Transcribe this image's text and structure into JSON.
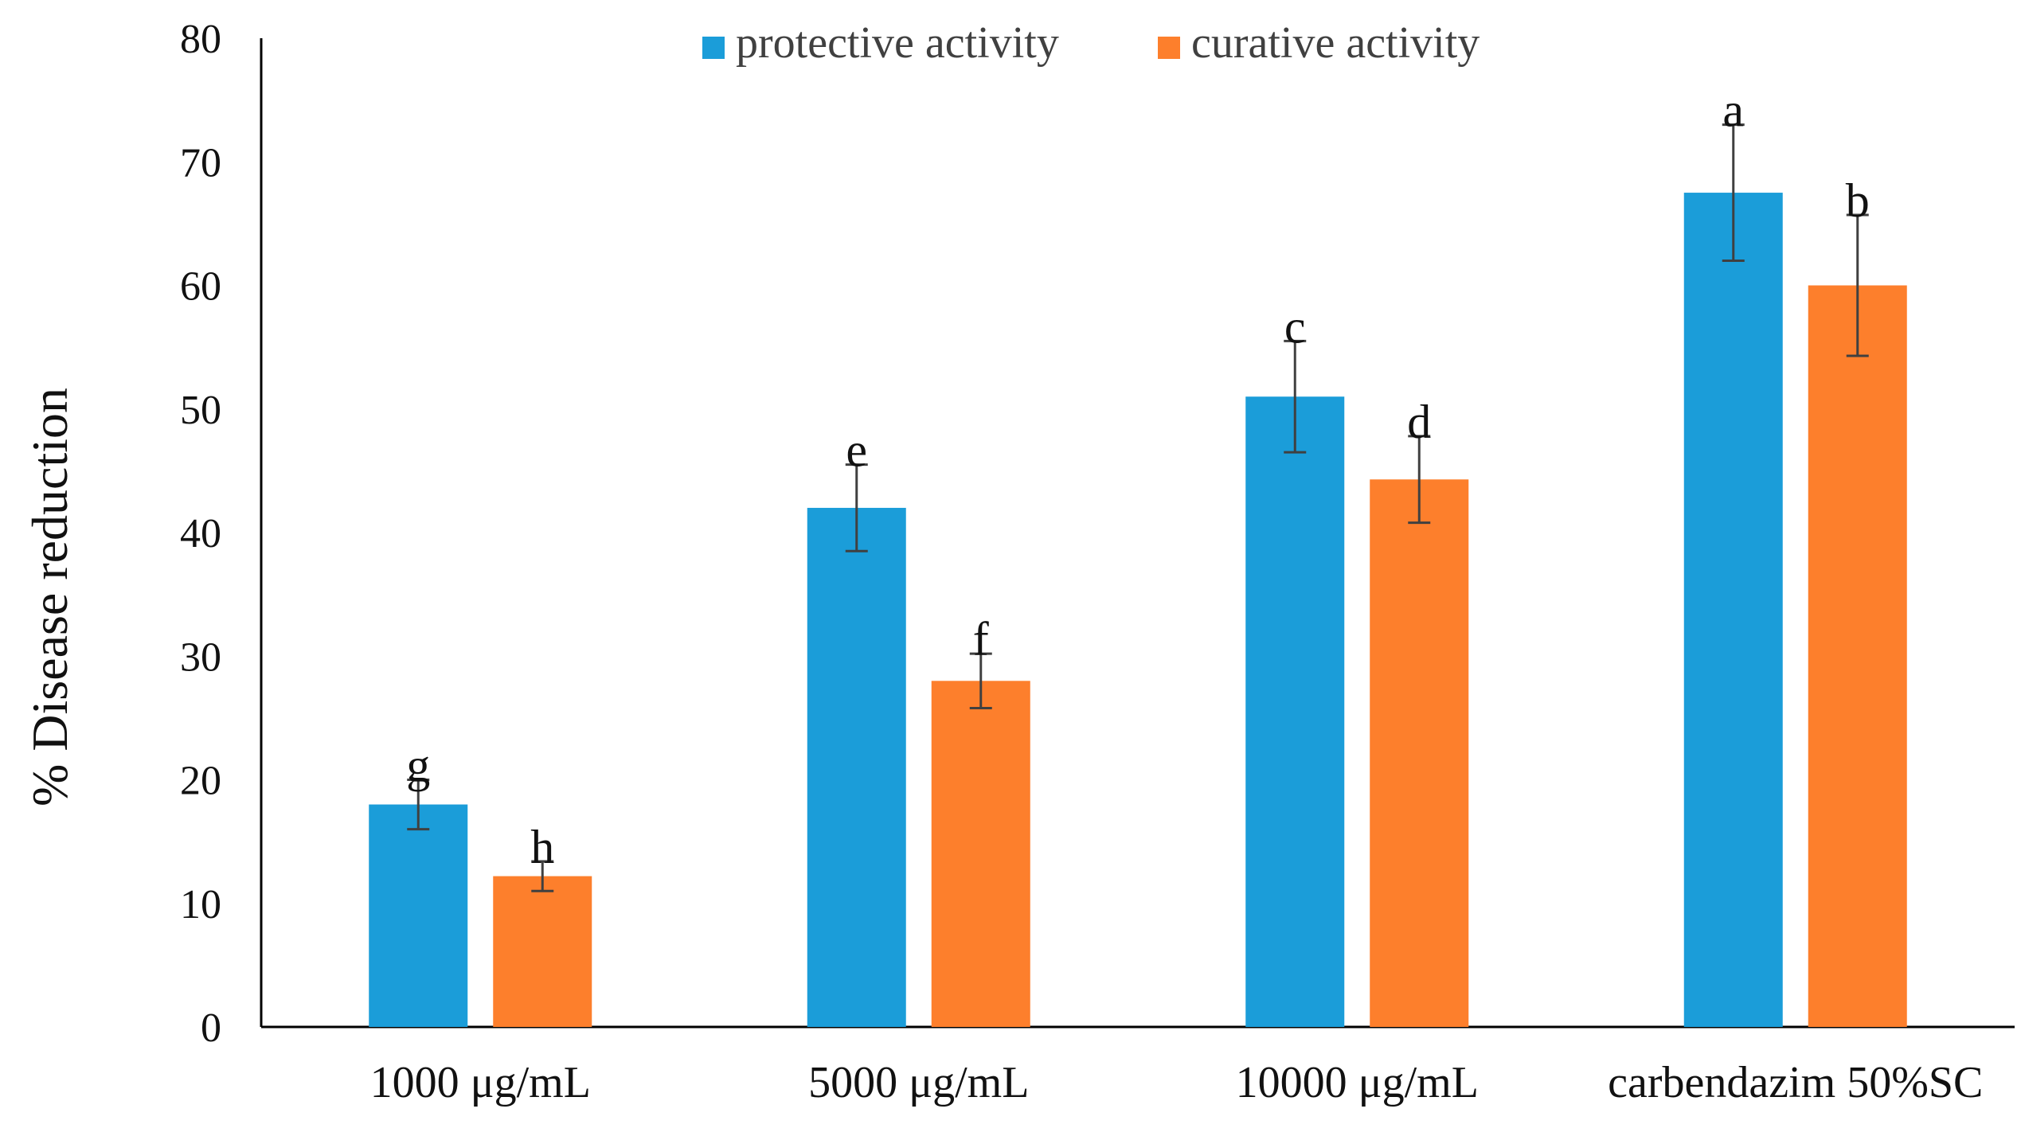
{
  "chart_data": {
    "type": "bar",
    "title": "",
    "xlabel": "",
    "ylabel": "% Disease reduction",
    "ylim": [
      0,
      80
    ],
    "yticks": [
      "0",
      "10",
      "20",
      "30",
      "40",
      "50",
      "60",
      "70",
      "80"
    ],
    "ytick_values": [
      0,
      10,
      20,
      30,
      40,
      50,
      60,
      70,
      80
    ],
    "grid": false,
    "legend_position": "top-center",
    "categories": [
      "1000 μg/mL",
      "5000 μg/mL",
      "10000 μg/mL",
      "carbendazim 50%SC"
    ],
    "series": [
      {
        "name": "protective activity",
        "color": "#1b9dd9",
        "values": [
          18,
          42,
          51,
          67.5
        ],
        "errors": [
          2,
          3.5,
          4.5,
          5.5
        ],
        "labels": [
          "g",
          "e",
          "c",
          "a"
        ]
      },
      {
        "name": "curative activity",
        "color": "#fd7f2c",
        "values": [
          12.2,
          28,
          44.3,
          60
        ],
        "errors": [
          1.2,
          2.2,
          3.5,
          5.7
        ],
        "labels": [
          "h",
          "f",
          "d",
          "b"
        ]
      }
    ]
  }
}
